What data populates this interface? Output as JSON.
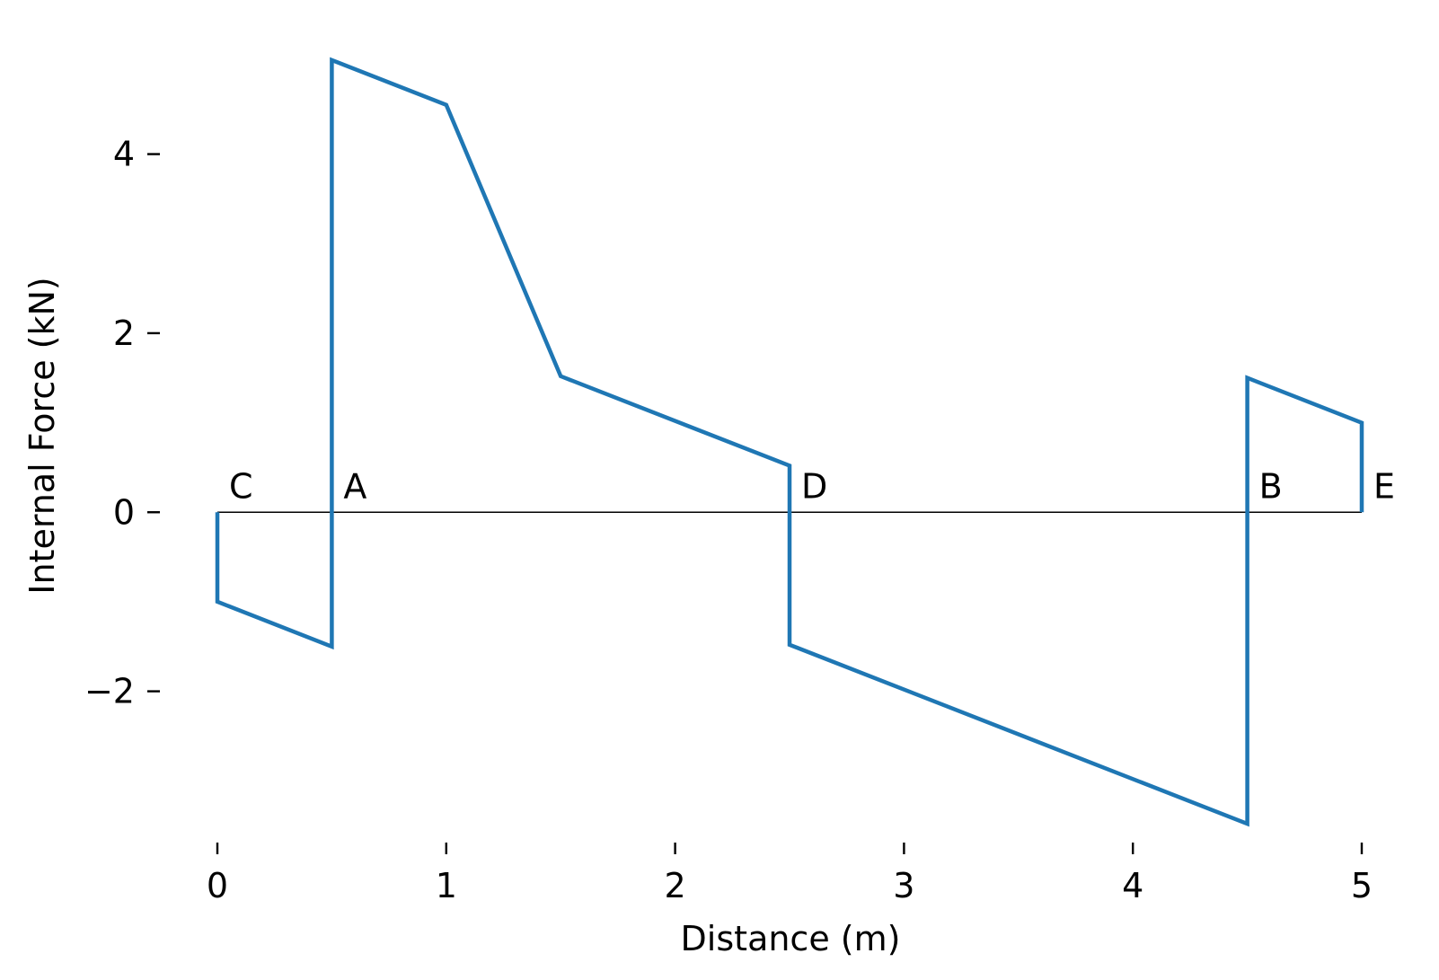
{
  "chart_data": {
    "type": "line",
    "title": "",
    "xlabel": "Distance (m)",
    "ylabel": "Internal Force  (kN)",
    "xlim": [
      0,
      5
    ],
    "ylim": [
      -3.8,
      5.3
    ],
    "x_ticks": [
      0,
      1,
      2,
      3,
      4,
      5
    ],
    "x_tick_labels": [
      "0",
      "1",
      "2",
      "3",
      "4",
      "5"
    ],
    "y_ticks": [
      -2,
      0,
      2,
      4
    ],
    "y_tick_labels": [
      "−2",
      "0",
      "2",
      "4"
    ],
    "grid": false,
    "baseline": 0,
    "line_color": "#1f77b4",
    "baseline_color": "#000000",
    "series": [
      {
        "points": [
          [
            0,
            0
          ],
          [
            0,
            -1.0
          ],
          [
            0.5,
            -1.5
          ],
          [
            0.5,
            5.05
          ],
          [
            1.0,
            4.55
          ],
          [
            1.5,
            1.52
          ],
          [
            2.5,
            0.52
          ],
          [
            2.5,
            -1.48
          ],
          [
            4.5,
            -3.48
          ],
          [
            4.5,
            1.5
          ],
          [
            5.0,
            1.0
          ],
          [
            5.0,
            0
          ]
        ]
      }
    ],
    "point_labels": [
      {
        "text": "C",
        "x": 0.0
      },
      {
        "text": "A",
        "x": 0.5
      },
      {
        "text": "D",
        "x": 2.5
      },
      {
        "text": "B",
        "x": 4.5
      },
      {
        "text": "E",
        "x": 5.0
      }
    ]
  }
}
